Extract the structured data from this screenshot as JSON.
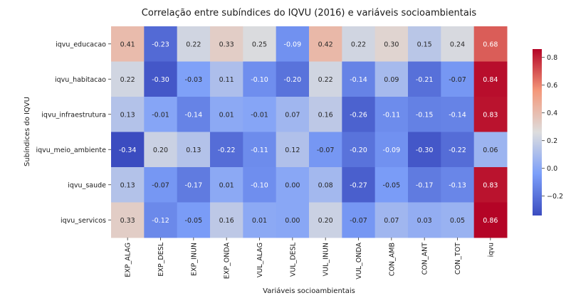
{
  "chart_data": {
    "type": "heatmap",
    "title": "Correlação entre subíndices do IQVU (2016) e variáveis socioambientais",
    "xlabel": "Variáveis socioambientais",
    "ylabel": "Subíndices do IQVU",
    "columns": [
      "EXP_ALAG",
      "EXP_DESL",
      "EXP_INUN",
      "EXP_ONDA",
      "VUL_ALAG",
      "VUL_DESL",
      "VUL_INUN",
      "VUL_ONDA",
      "CON_AMB",
      "CON_ANT",
      "CON_TOT",
      "iqvu"
    ],
    "rows": [
      "iqvu_educacao",
      "iqvu_habitacao",
      "iqvu_infraestrutura",
      "iqvu_meio_ambiente",
      "iqvu_saude",
      "iqvu_servicos"
    ],
    "values": [
      [
        0.41,
        -0.23,
        0.22,
        0.33,
        0.25,
        -0.09,
        0.42,
        0.22,
        0.3,
        0.15,
        0.24,
        0.68
      ],
      [
        0.22,
        -0.3,
        -0.03,
        0.11,
        -0.1,
        -0.2,
        0.22,
        -0.14,
        0.09,
        -0.21,
        -0.07,
        0.84
      ],
      [
        0.13,
        -0.01,
        -0.14,
        0.01,
        -0.01,
        0.07,
        0.16,
        -0.26,
        -0.11,
        -0.15,
        -0.14,
        0.83
      ],
      [
        -0.34,
        0.2,
        0.13,
        -0.22,
        -0.11,
        0.12,
        -0.07,
        -0.2,
        -0.09,
        -0.3,
        -0.22,
        0.06
      ],
      [
        0.13,
        -0.07,
        -0.17,
        0.01,
        -0.1,
        0.0,
        0.08,
        -0.27,
        -0.05,
        -0.17,
        -0.13,
        0.83
      ],
      [
        0.33,
        -0.12,
        -0.05,
        0.16,
        0.01,
        0.0,
        0.2,
        -0.07,
        0.07,
        0.03,
        0.05,
        0.86
      ]
    ],
    "annotation_format": "2 decimals",
    "colormap": "coolwarm",
    "vmin": -0.34,
    "vmax": 0.86,
    "colorbar_ticks": [
      -0.2,
      0.0,
      0.2,
      0.4,
      0.6,
      0.8
    ]
  }
}
